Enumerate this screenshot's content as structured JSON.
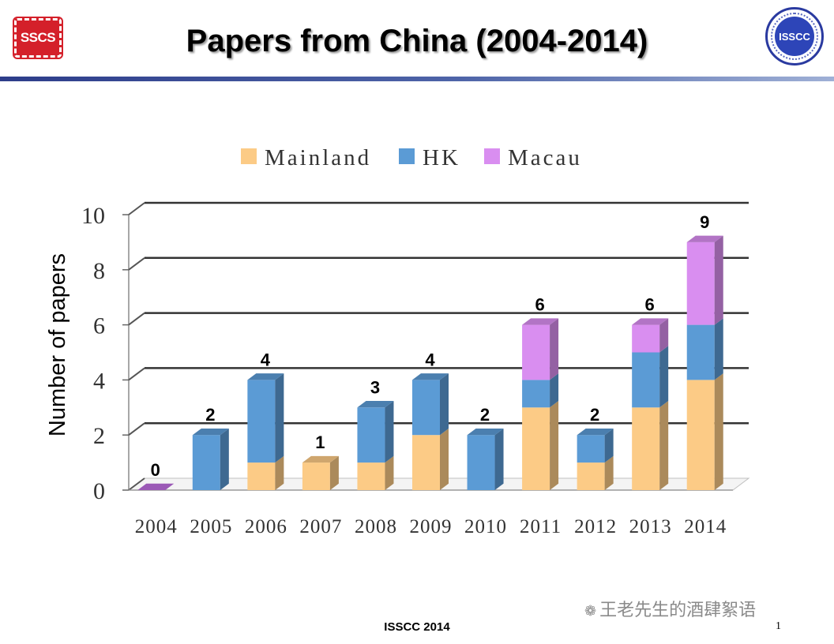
{
  "slide": {
    "title": "Papers from China (2004-2014)",
    "footer": "ISSCC 2014",
    "page_number": "1",
    "watermark": "王老先生的酒肆絮语",
    "logo_left": "SSCS",
    "logo_right": "ISSCC"
  },
  "colors": {
    "mainland": "#FCCB86",
    "hk": "#5B9BD5",
    "macau": "#D98EF0",
    "title_rule": "#3A4F9A"
  },
  "chart_data": {
    "type": "bar",
    "stacked": true,
    "three_d": true,
    "title": "",
    "xlabel": "",
    "ylabel": "Number of papers",
    "ylim": [
      0,
      10
    ],
    "yticks": [
      "0",
      "2",
      "4",
      "6",
      "8",
      "10"
    ],
    "grid": true,
    "legend_position": "top",
    "categories": [
      "2004",
      "2005",
      "2006",
      "2007",
      "2008",
      "2009",
      "2010",
      "2011",
      "2012",
      "2013",
      "2014"
    ],
    "series": [
      {
        "name": "Mainland",
        "values": [
          0,
          0,
          1,
          1,
          1,
          2,
          0,
          3,
          1,
          3,
          4
        ]
      },
      {
        "name": "HK",
        "values": [
          0,
          2,
          3,
          0,
          2,
          2,
          2,
          1,
          1,
          2,
          2
        ]
      },
      {
        "name": "Macau",
        "values": [
          0,
          0,
          0,
          0,
          0,
          0,
          0,
          2,
          0,
          1,
          3
        ]
      }
    ],
    "totals": [
      "0",
      "2",
      "4",
      "1",
      "3",
      "4",
      "2",
      "6",
      "2",
      "6",
      "9"
    ]
  }
}
